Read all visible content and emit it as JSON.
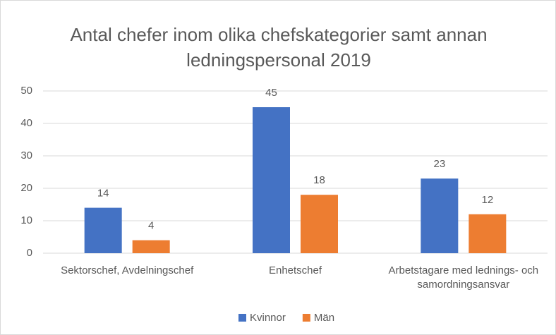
{
  "chart_data": {
    "type": "bar",
    "title": "Antal chefer inom olika chefskategorier samt annan ledningspersonal 2019",
    "categories": [
      "Sektorschef, Avdelningschef",
      "Enhetschef",
      "Arbetstagare med lednings- och samordningsansvar"
    ],
    "series": [
      {
        "name": "Kvinnor",
        "color": "#4472c4",
        "values": [
          14,
          45,
          23
        ]
      },
      {
        "name": "Män",
        "color": "#ed7d31",
        "values": [
          4,
          18,
          12
        ]
      }
    ],
    "ylim": [
      0,
      50
    ],
    "yticks": [
      0,
      10,
      20,
      30,
      40,
      50
    ],
    "grid": true,
    "legend": "bottom"
  }
}
